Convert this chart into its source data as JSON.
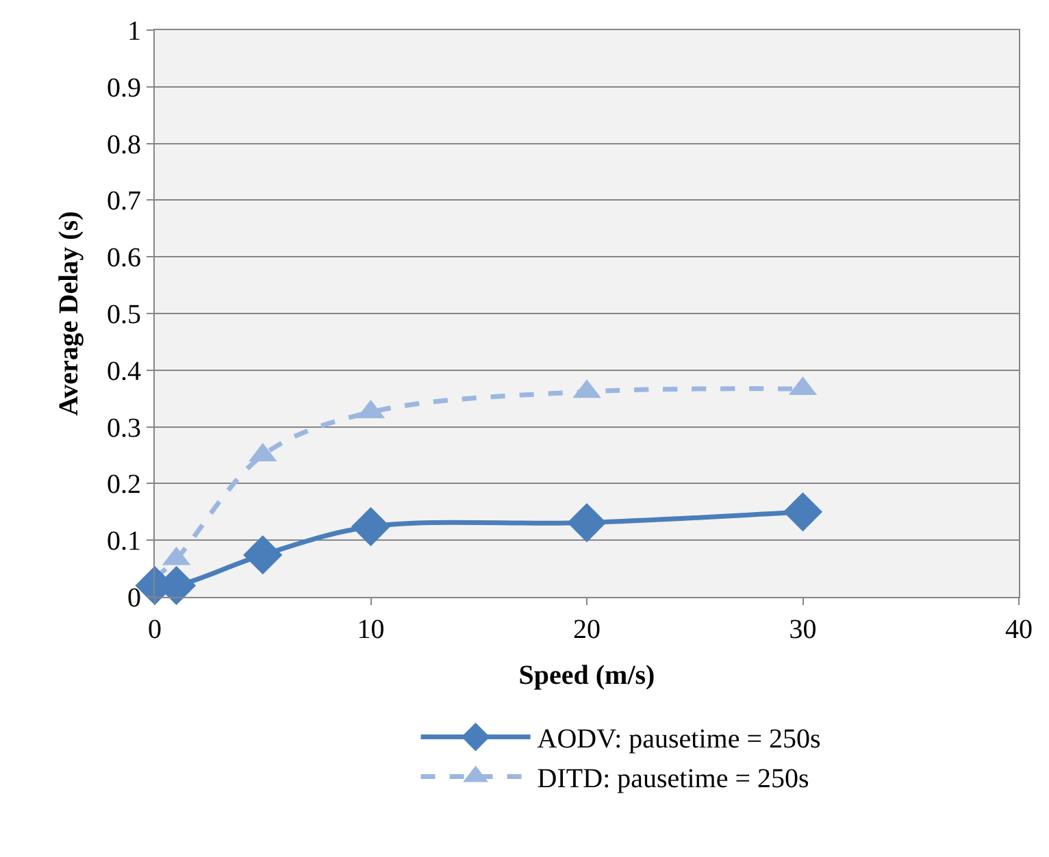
{
  "chart_data": {
    "type": "line",
    "xlabel": "Speed (m/s)",
    "ylabel": "Average Delay (s)",
    "x": [
      0,
      1,
      5,
      10,
      20,
      30
    ],
    "series": [
      {
        "name": "AODV: pausetime = 250s",
        "color": "#4a7ebb",
        "values": [
          0.02,
          0.02,
          0.074,
          0.124,
          0.131,
          0.15
        ],
        "marker": "diamond",
        "line_style": "solid"
      },
      {
        "name": "DITD: pausetime = 250s",
        "color": "#9bb7e0",
        "values": [
          0.033,
          0.067,
          0.25,
          0.326,
          0.362,
          0.367
        ],
        "marker": "triangle",
        "line_style": "dashed"
      }
    ],
    "xlim": [
      0,
      40
    ],
    "xticks": [
      0,
      10,
      20,
      30,
      40
    ],
    "ylim": [
      0,
      1
    ],
    "yticks": [
      0,
      0.1,
      0.2,
      0.3,
      0.4,
      0.5,
      0.6,
      0.7,
      0.8,
      0.9,
      1
    ],
    "grid": "y",
    "legend": "bottom"
  }
}
